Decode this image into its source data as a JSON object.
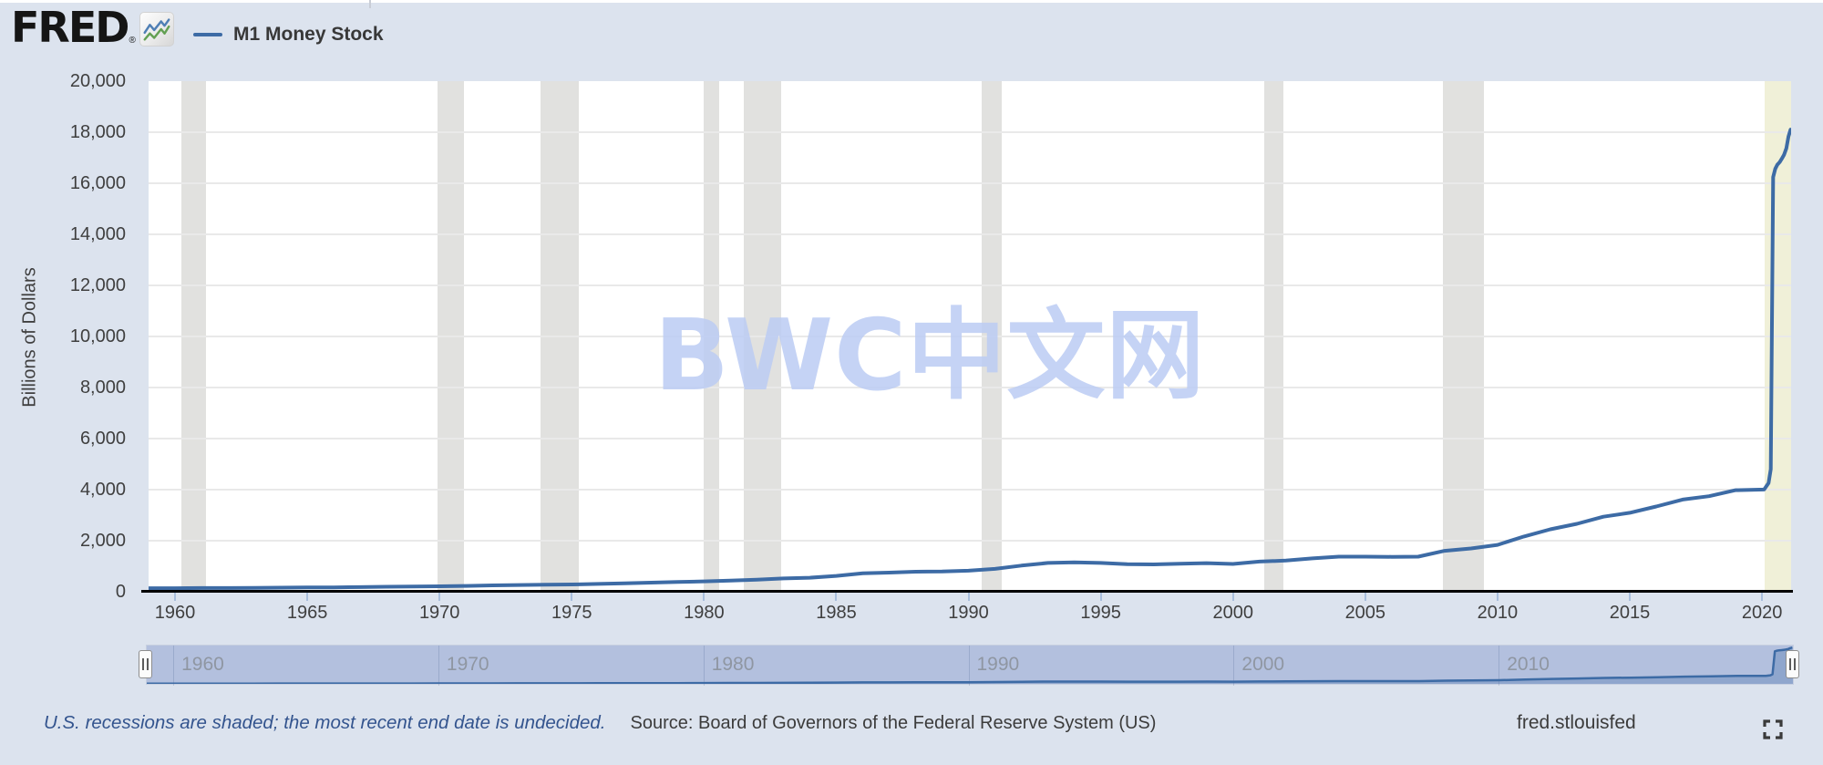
{
  "header": {
    "logo": {
      "text": "FRED",
      "registered": "®",
      "icon": "line-chart-icon"
    },
    "legend": {
      "series_label": "M1 Money Stock",
      "swatch_color": "#3d6ba5"
    }
  },
  "chart_data": {
    "type": "line",
    "title": "M1 Money Stock",
    "ylabel": "Billions of Dollars",
    "xlabel": "",
    "ylim": [
      0,
      20000
    ],
    "xlim": [
      1959.0,
      2021.1
    ],
    "grid": true,
    "y_ticks": [
      0,
      2000,
      4000,
      6000,
      8000,
      10000,
      12000,
      14000,
      16000,
      18000,
      20000
    ],
    "x_ticks": [
      1960,
      1965,
      1970,
      1975,
      1980,
      1985,
      1990,
      1995,
      2000,
      2005,
      2010,
      2015,
      2020
    ],
    "series": [
      {
        "name": "M1 Money Stock",
        "color": "#3d6ba5",
        "x": [
          1959,
          1960,
          1961,
          1962,
          1963,
          1964,
          1965,
          1966,
          1967,
          1968,
          1969,
          1970,
          1971,
          1972,
          1973,
          1974,
          1975,
          1976,
          1977,
          1978,
          1979,
          1980,
          1981,
          1982,
          1983,
          1984,
          1985,
          1986,
          1987,
          1988,
          1989,
          1990,
          1991,
          1992,
          1993,
          1994,
          1995,
          1996,
          1997,
          1998,
          1999,
          2000,
          2001,
          2002,
          2003,
          2004,
          2005,
          2006,
          2007,
          2008,
          2009,
          2010,
          2011,
          2012,
          2013,
          2014,
          2015,
          2016,
          2017,
          2018,
          2019,
          2020.08,
          2020.25,
          2020.33,
          2020.42,
          2020.5,
          2020.58,
          2020.67,
          2020.75,
          2020.83,
          2020.92,
          2021.0,
          2021.08
        ],
        "values": [
          140,
          140.7,
          145.2,
          147.8,
          153.3,
          160.3,
          167.8,
          172,
          183.3,
          197.4,
          203.9,
          214.4,
          228.3,
          249.2,
          262.9,
          274.2,
          287.1,
          306.2,
          330.9,
          357.3,
          381.8,
          408.5,
          436.7,
          474.8,
          521.4,
          551.6,
          619.8,
          724.7,
          750.2,
          786.7,
          792.9,
          824.7,
          897,
          1024.9,
          1129.6,
          1150.6,
          1127.5,
          1081.3,
          1072.3,
          1095.8,
          1122.2,
          1087.9,
          1182.1,
          1220.4,
          1306.3,
          1376.3,
          1374.5,
          1366.5,
          1373.5,
          1602.4,
          1695.5,
          1836.7,
          2164.4,
          2445.2,
          2661.8,
          2940,
          3093.6,
          3339.5,
          3610.5,
          3742.3,
          3977,
          4003,
          4261,
          4800,
          16244,
          16564,
          16730,
          16830,
          16959,
          17110,
          17367,
          17828,
          18100
        ]
      }
    ],
    "recessions": [
      {
        "start": 1960.25,
        "end": 1961.17,
        "style": "gray"
      },
      {
        "start": 1969.92,
        "end": 1970.92,
        "style": "gray"
      },
      {
        "start": 1973.83,
        "end": 1975.25,
        "style": "gray"
      },
      {
        "start": 1980.0,
        "end": 1980.58,
        "style": "gray"
      },
      {
        "start": 1981.5,
        "end": 1982.92,
        "style": "gray"
      },
      {
        "start": 1990.5,
        "end": 1991.25,
        "style": "gray"
      },
      {
        "start": 2001.17,
        "end": 2001.92,
        "style": "gray"
      },
      {
        "start": 2007.92,
        "end": 2009.5,
        "style": "gray"
      },
      {
        "start": 2020.1,
        "end": 2021.1,
        "style": "yellow"
      }
    ],
    "navigator": {
      "labels": [
        1960,
        1970,
        1980,
        1990,
        2000,
        2010
      ],
      "nav_max": 18200
    },
    "watermark": "BWC中文网",
    "colors": {
      "background": "#dce3ee",
      "plot_background": "#ffffff",
      "recession_gray": "#e1e1df",
      "recession_open": "#f0f0d8",
      "navigator_fill": "#b3c0de"
    }
  },
  "footer": {
    "note": "U.S. recessions are shaded; the most recent end date is undecided.",
    "source": "Source: Board of Governors of the Federal Reserve System (US)",
    "site": "fred.stlouisfed",
    "icons": {
      "fullscreen": "fullscreen-corners"
    }
  }
}
